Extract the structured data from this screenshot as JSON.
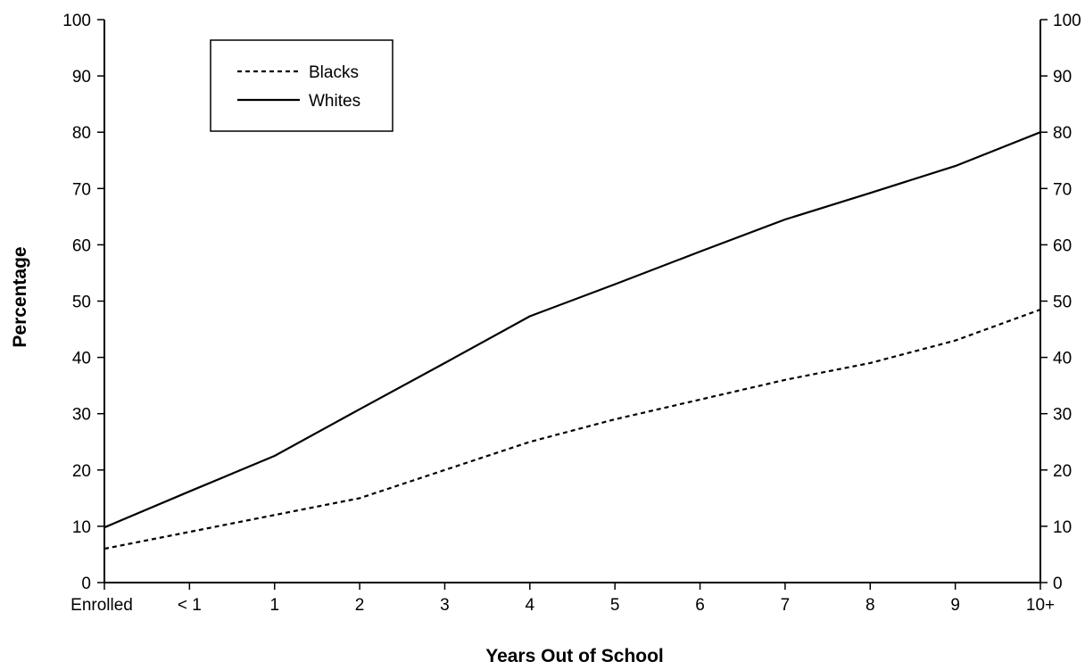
{
  "chart_data": {
    "type": "line",
    "title": "",
    "xlabel": "Years Out of School",
    "ylabel": "Percentage",
    "categories": [
      "Enrolled",
      "< 1",
      "1",
      "2",
      "3",
      "4",
      "5",
      "6",
      "7",
      "8",
      "9",
      "10+"
    ],
    "ylim": [
      0,
      100
    ],
    "yticks": [
      0,
      10,
      20,
      30,
      40,
      50,
      60,
      70,
      80,
      90,
      100
    ],
    "right_axis": true,
    "grid": false,
    "legend": {
      "position": "top-left"
    },
    "series": [
      {
        "name": "Blacks",
        "style": "dashed",
        "color": "#000000",
        "values": [
          6.0,
          9.0,
          12.0,
          15.0,
          20.0,
          25.0,
          29.0,
          32.5,
          36.0,
          39.0,
          43.0,
          48.5
        ]
      },
      {
        "name": "Whites",
        "style": "solid",
        "color": "#000000",
        "values": [
          9.8,
          16.2,
          22.5,
          30.8,
          39.0,
          47.3,
          53.0,
          58.8,
          64.5,
          69.2,
          74.0,
          80.0
        ]
      }
    ]
  }
}
